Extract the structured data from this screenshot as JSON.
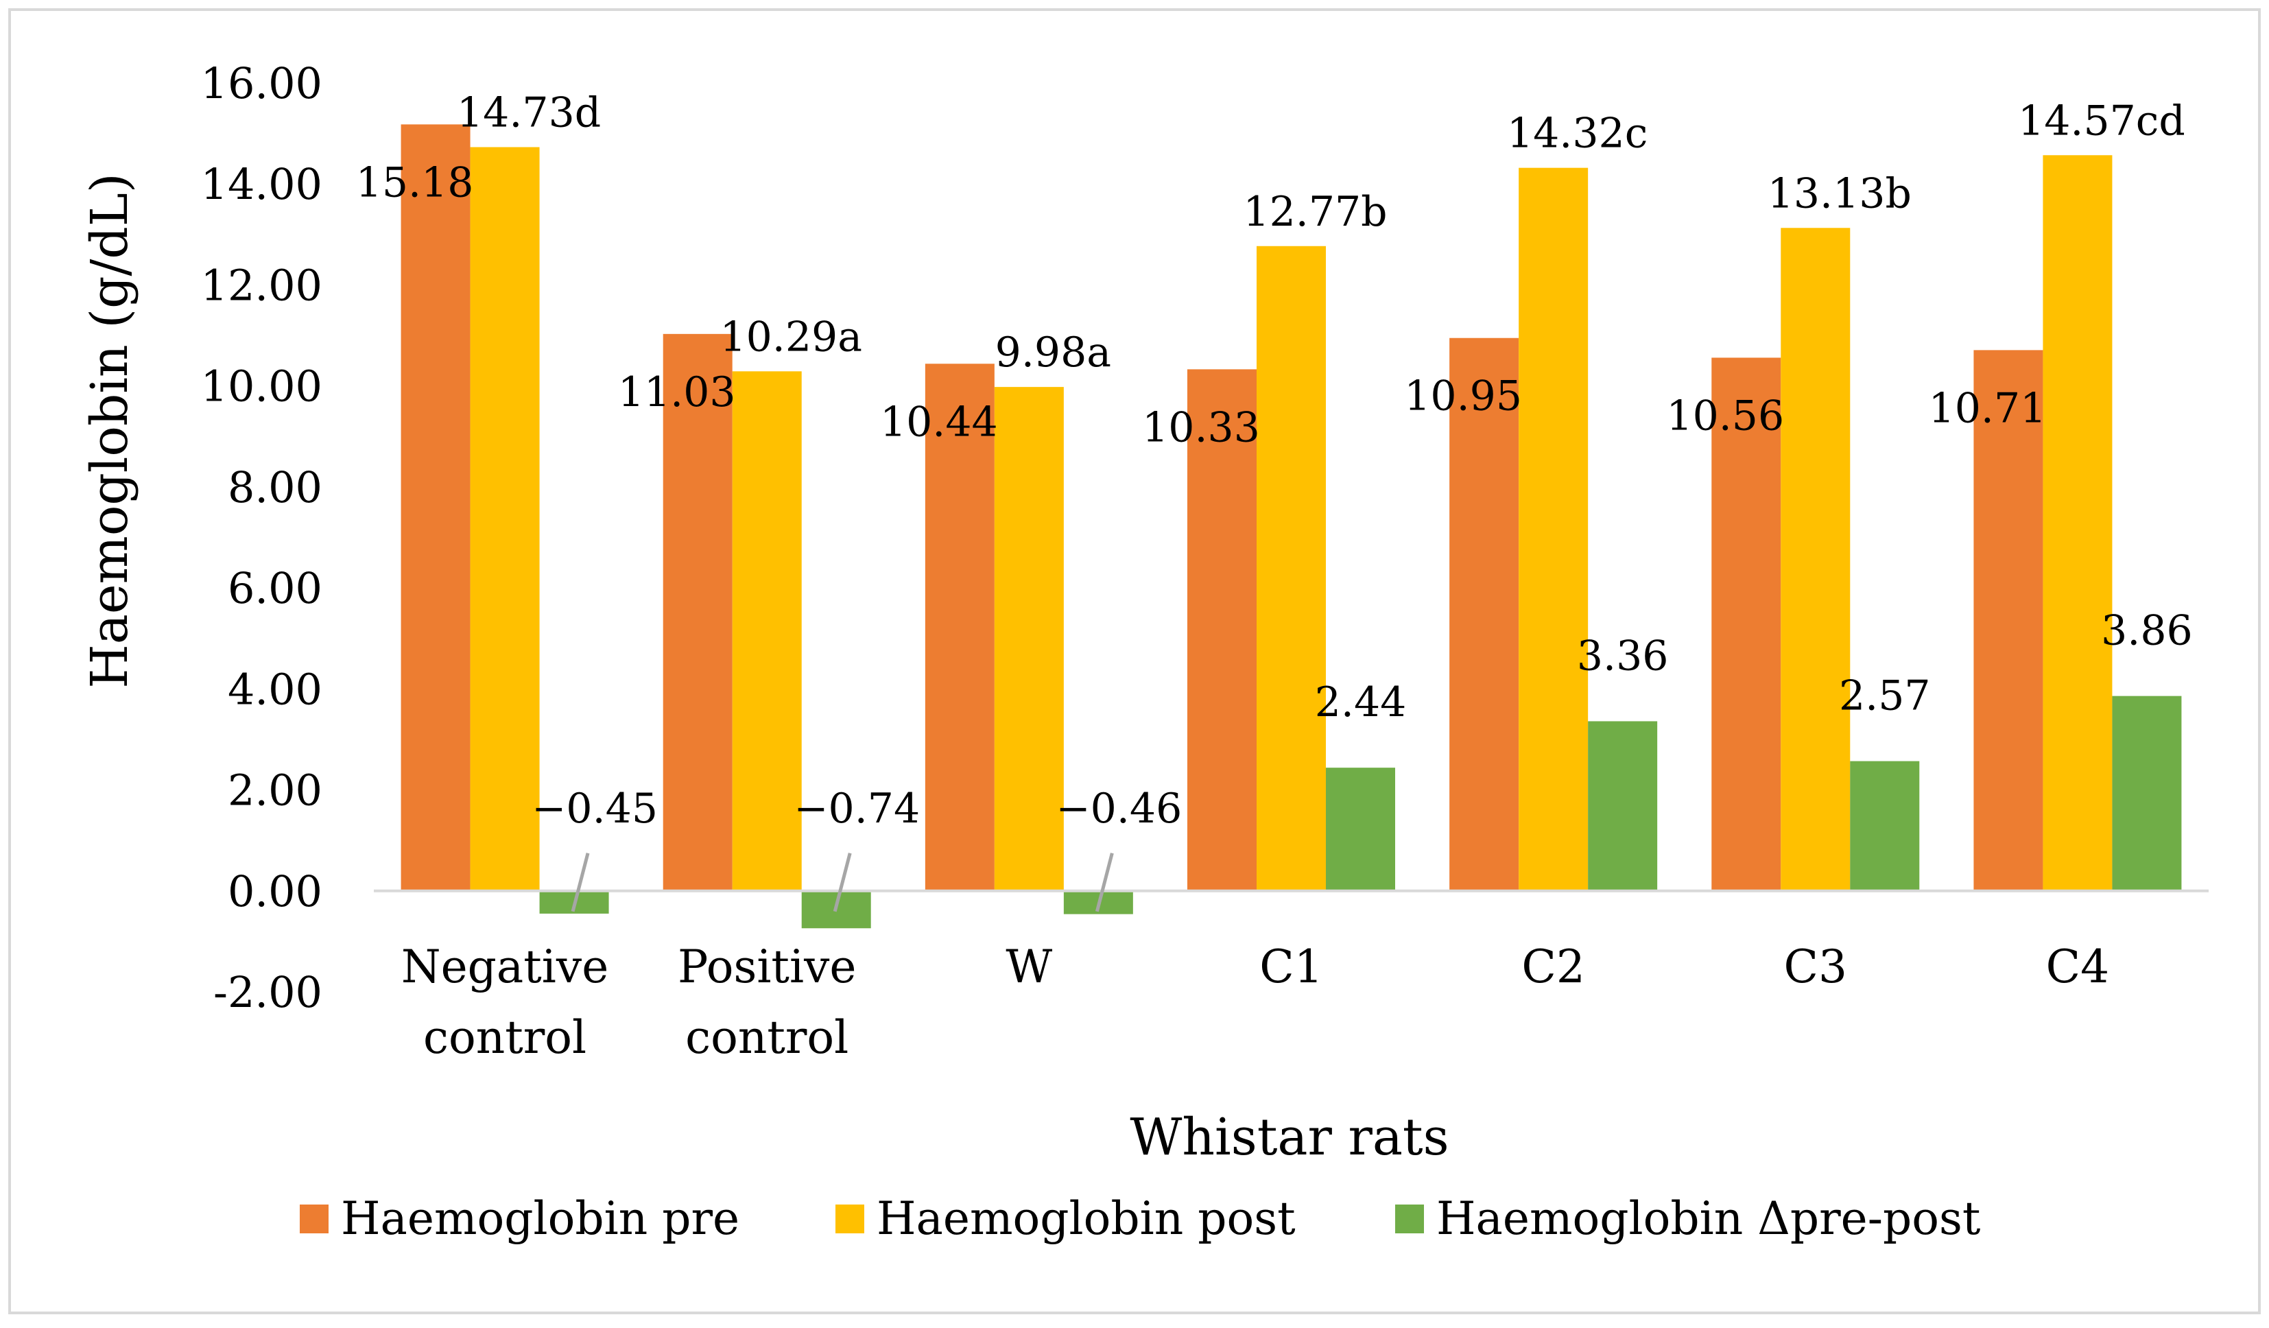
{
  "chart_data": {
    "type": "bar",
    "title": "",
    "xlabel": "Whistar rats",
    "ylabel": "Haemoglobin (g/dL)",
    "ylim": [
      -2,
      16
    ],
    "ytick_step": 2,
    "ytick_labels": [
      "-2.00",
      "0.00",
      "2.00",
      "4.00",
      "6.00",
      "8.00",
      "10.00",
      "12.00",
      "14.00",
      "16.00"
    ],
    "grid": false,
    "legend_position": "bottom",
    "categories": [
      [
        "Negative",
        "control"
      ],
      [
        "Positive",
        "control"
      ],
      [
        "W"
      ],
      [
        "C1"
      ],
      [
        "C2"
      ],
      [
        "C3"
      ],
      [
        "C4"
      ]
    ],
    "series": [
      {
        "name": "Haemoglobin pre",
        "color": "#ED7D31",
        "values": [
          15.18,
          11.03,
          10.44,
          10.33,
          10.95,
          10.56,
          10.71
        ],
        "labels": [
          "15.18",
          "11.03",
          "10.44",
          "10.33",
          "10.95",
          "10.56",
          "10.71"
        ]
      },
      {
        "name": "Haemoglobin post",
        "color": "#FFC000",
        "values": [
          14.73,
          10.29,
          9.98,
          12.77,
          14.32,
          13.13,
          14.57
        ],
        "labels": [
          "14.73d",
          "10.29a",
          "9.98a",
          "12.77b",
          "14.32c",
          "13.13b",
          "14.57cd"
        ]
      },
      {
        "name": "Haemoglobin Δpre-post",
        "color": "#70AD47",
        "values": [
          -0.45,
          -0.74,
          -0.46,
          2.44,
          3.36,
          2.57,
          3.86
        ],
        "labels": [
          "−0.45",
          "−0.74",
          "−0.46",
          "2.44",
          "3.36",
          "2.57",
          "3.86"
        ]
      }
    ]
  }
}
